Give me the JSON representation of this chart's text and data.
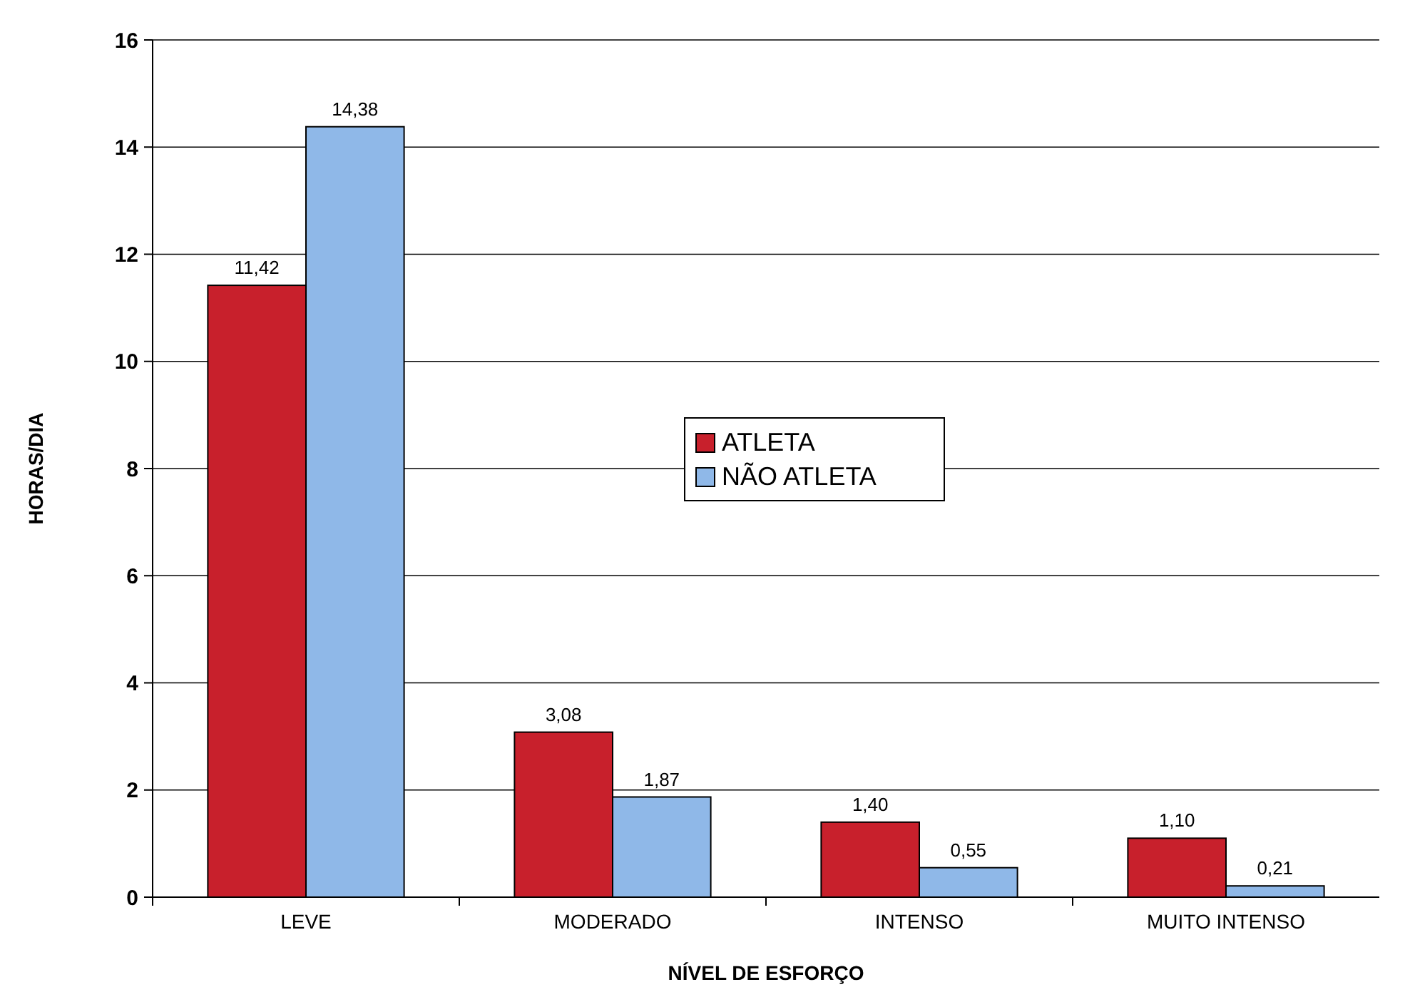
{
  "chart_data": {
    "type": "bar",
    "xlabel": "NÍVEL DE ESFORÇO",
    "ylabel": "HORAS/DIA",
    "categories": [
      "LEVE",
      "MODERADO",
      "INTENSO",
      "MUITO INTENSO"
    ],
    "series": [
      {
        "name": "ATLETA",
        "color": "#c8202c",
        "values": [
          11.42,
          3.08,
          1.4,
          1.1
        ],
        "value_labels": [
          "11,42",
          "3,08",
          "1,40",
          "1,10"
        ]
      },
      {
        "name": "NÃO ATLETA",
        "color": "#8fb8e8",
        "values": [
          14.38,
          1.87,
          0.55,
          0.21
        ],
        "value_labels": [
          "14,38",
          "1,87",
          "0,55",
          "0,21"
        ]
      }
    ],
    "ylim": [
      0,
      16
    ],
    "yticks": [
      0,
      2,
      4,
      6,
      8,
      10,
      12,
      14,
      16
    ],
    "grid": "y",
    "legend": "center"
  }
}
